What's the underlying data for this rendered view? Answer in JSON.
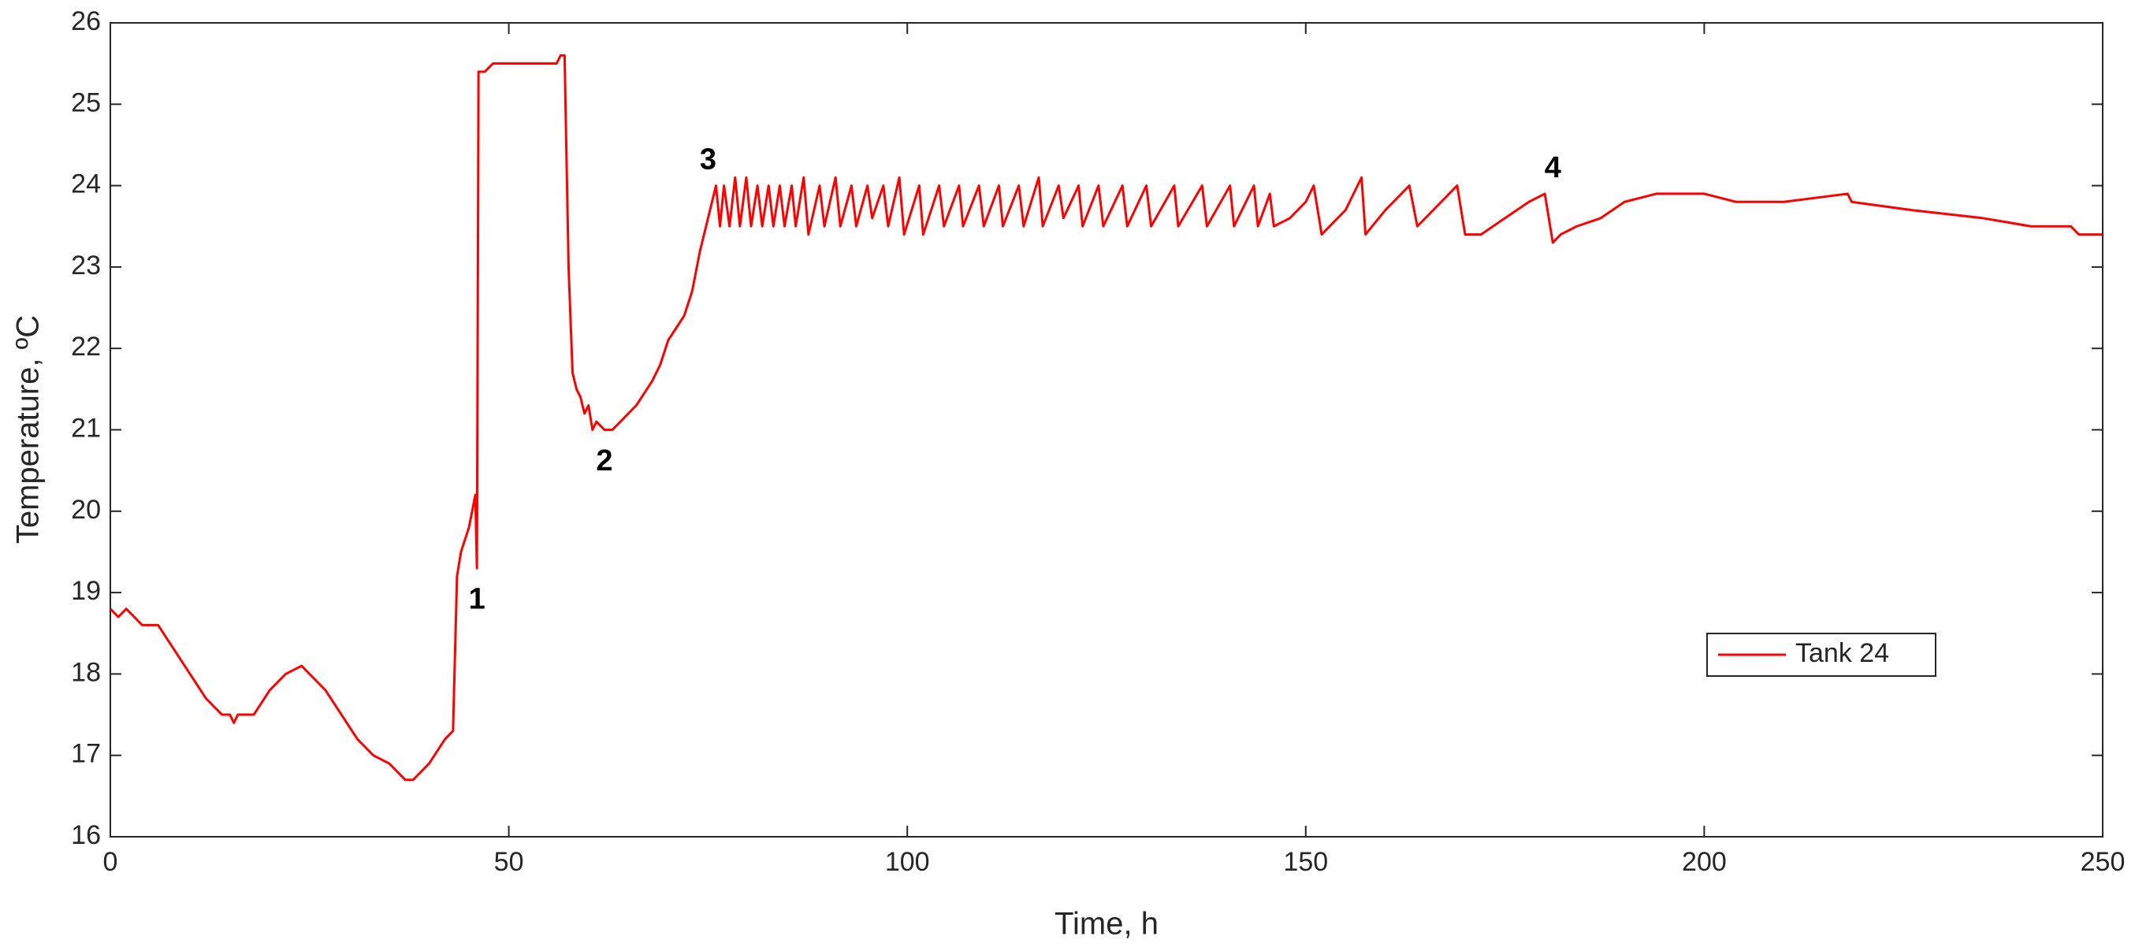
{
  "chart_data": {
    "type": "line",
    "xlabel": "Time, h",
    "ylabel": "Temperature, ºC",
    "xlim": [
      0,
      250
    ],
    "ylim": [
      16,
      26
    ],
    "xticks": [
      0,
      50,
      100,
      150,
      200,
      250
    ],
    "yticks": [
      16,
      17,
      18,
      19,
      20,
      21,
      22,
      23,
      24,
      25,
      26
    ],
    "legend": "east",
    "grid": false,
    "series": [
      {
        "name": "Tank 24",
        "color": "#ff0000",
        "x": [
          0,
          1,
          2,
          3,
          4,
          6,
          8,
          10,
          12,
          14,
          15,
          15.5,
          16,
          18,
          20,
          22,
          24,
          25,
          27,
          29,
          31,
          33,
          35,
          37,
          38,
          40,
          42,
          43,
          43.5,
          44,
          45,
          45.8,
          46,
          46.2,
          47,
          48,
          52,
          56,
          56.5,
          57,
          57.5,
          58,
          58.5,
          59,
          59.5,
          60,
          60.5,
          61,
          62,
          63,
          64,
          66,
          68,
          69,
          70,
          72,
          73,
          74,
          75,
          76,
          76.5,
          77,
          77.7,
          78.4,
          79,
          79.8,
          80.4,
          81.2,
          81.8,
          82.6,
          83.2,
          84,
          84.6,
          85.5,
          86,
          87,
          87.6,
          89,
          89.6,
          91,
          91.6,
          93,
          93.6,
          95,
          95.6,
          97,
          97.6,
          99,
          99.6,
          101.5,
          102,
          104,
          104.6,
          106.5,
          107,
          109,
          109.6,
          111.5,
          112,
          114,
          114.6,
          116.5,
          117,
          119,
          119.6,
          121.5,
          122,
          124,
          124.6,
          127,
          127.6,
          130,
          130.6,
          133.5,
          134,
          137,
          137.6,
          140.5,
          141,
          143.5,
          144,
          145.5,
          146,
          148,
          150,
          151,
          152,
          155,
          157,
          157.5,
          160,
          163,
          164,
          167,
          169,
          170,
          172,
          175,
          178,
          180,
          181,
          182,
          184,
          187,
          190,
          194,
          200,
          204,
          210,
          218,
          218.5,
          226,
          235,
          241,
          246,
          247,
          250
        ],
        "values": [
          18.8,
          18.7,
          18.8,
          18.7,
          18.6,
          18.6,
          18.3,
          18.0,
          17.7,
          17.5,
          17.5,
          17.4,
          17.5,
          17.5,
          17.8,
          18.0,
          18.1,
          18.0,
          17.8,
          17.5,
          17.2,
          17.0,
          16.9,
          16.7,
          16.7,
          16.9,
          17.2,
          17.3,
          19.2,
          19.5,
          19.8,
          20.2,
          19.3,
          25.4,
          25.4,
          25.5,
          25.5,
          25.5,
          25.6,
          25.6,
          23.0,
          21.7,
          21.5,
          21.4,
          21.2,
          21.3,
          21.0,
          21.1,
          21.0,
          21.0,
          21.1,
          21.3,
          21.6,
          21.8,
          22.1,
          22.4,
          22.7,
          23.2,
          23.6,
          24.0,
          23.5,
          24.0,
          23.5,
          24.1,
          23.5,
          24.1,
          23.5,
          24.0,
          23.5,
          24.0,
          23.5,
          24.0,
          23.5,
          24.0,
          23.5,
          24.1,
          23.4,
          24.0,
          23.5,
          24.1,
          23.5,
          24.0,
          23.5,
          24.0,
          23.6,
          24.0,
          23.5,
          24.1,
          23.4,
          24.0,
          23.4,
          24.0,
          23.5,
          24.0,
          23.5,
          24.0,
          23.5,
          24.0,
          23.5,
          24.0,
          23.5,
          24.1,
          23.5,
          24.0,
          23.6,
          24.0,
          23.5,
          24.0,
          23.5,
          24.0,
          23.5,
          24.0,
          23.5,
          24.0,
          23.5,
          24.0,
          23.5,
          24.0,
          23.5,
          24.0,
          23.5,
          23.9,
          23.5,
          23.6,
          23.8,
          24.0,
          23.4,
          23.7,
          24.1,
          23.4,
          23.7,
          24.0,
          23.5,
          23.8,
          24.0,
          23.4,
          23.4,
          23.6,
          23.8,
          23.9,
          23.3,
          23.4,
          23.5,
          23.6,
          23.8,
          23.9,
          23.9,
          23.8,
          23.8,
          23.9,
          23.8,
          23.7,
          23.6,
          23.5,
          23.5,
          23.4,
          23.4
        ]
      }
    ],
    "annotations": [
      {
        "text": "1",
        "x": 46,
        "y": 18.9
      },
      {
        "text": "2",
        "x": 62,
        "y": 20.6
      },
      {
        "text": "3",
        "x": 75,
        "y": 24.3
      },
      {
        "text": "4",
        "x": 181,
        "y": 24.2
      }
    ]
  }
}
